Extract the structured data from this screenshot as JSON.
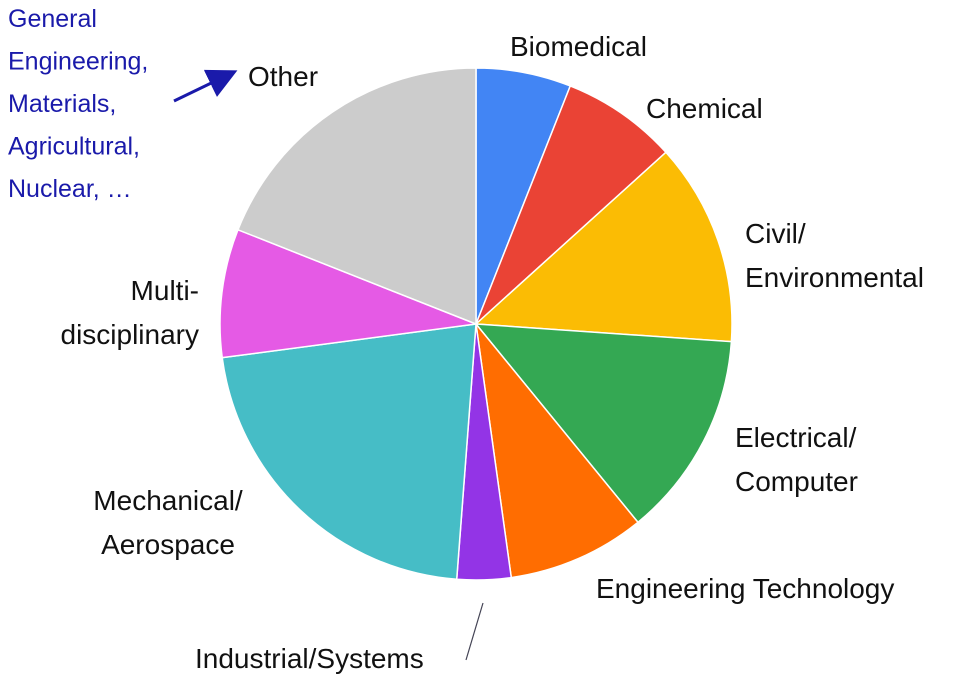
{
  "chart_data": {
    "type": "pie",
    "categories": [
      "Biomedical",
      "Chemical",
      "Civil/\nEnvironmental",
      "Electrical/\nComputer",
      "Engineering Technology",
      "Industrial/Systems",
      "Mechanical/\nAerospace",
      "Multi-\ndisciplinary",
      "Other"
    ],
    "values": [
      6,
      7.3,
      12.8,
      13,
      8.7,
      3.4,
      21.7,
      8.1,
      19
    ],
    "colors": [
      "#4285f4",
      "#ea4335",
      "#fbbc04",
      "#34a853",
      "#ff6d01",
      "#9334e6",
      "#46bdc6",
      "#e55ae5",
      "#cccccc"
    ],
    "annotation": "General\nEngineering,\nMaterials,\nAgricultural,\nNuclear, …"
  }
}
